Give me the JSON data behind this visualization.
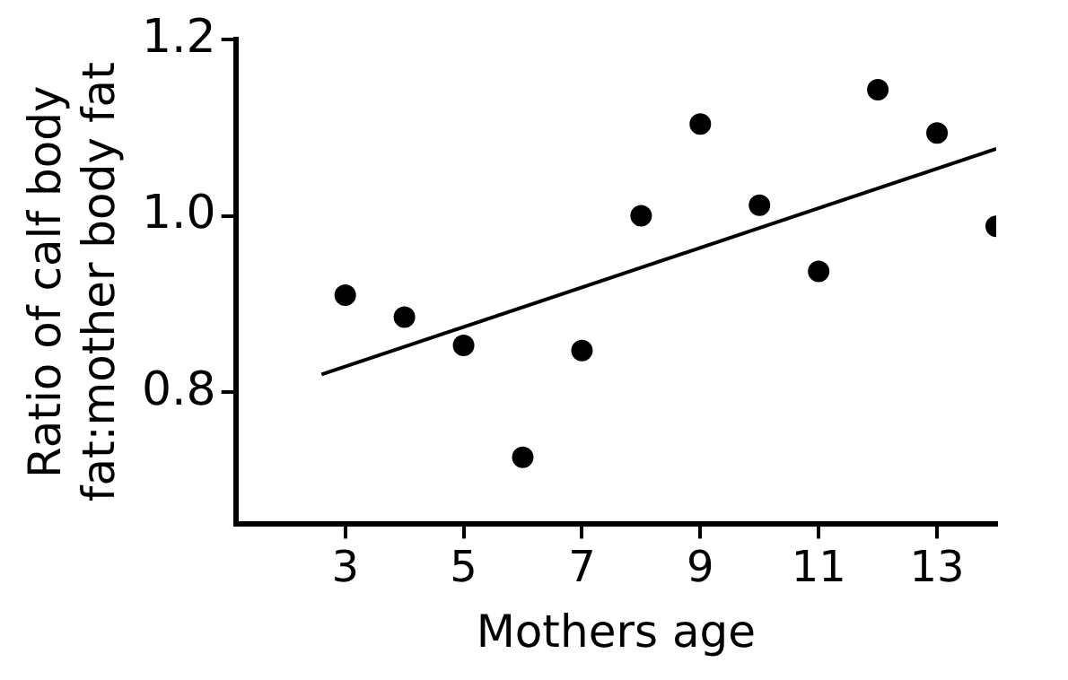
{
  "chart_data": {
    "type": "scatter",
    "xlabel": "Mothers age",
    "ylabel": "Ratio of calf body fat:mother body fat",
    "xlim": [
      1.15,
      14
    ],
    "xticks": [
      3,
      5,
      7,
      9,
      11,
      13
    ],
    "ylim": [
      0.65,
      1.2
    ],
    "yticks": [
      {
        "value": 0.8,
        "label": "0.8"
      },
      {
        "value": 1.0,
        "label": "1.0"
      },
      {
        "value": 1.2,
        "label": "1.2"
      }
    ],
    "grid": false,
    "legend": false,
    "series": [
      {
        "color": "#000000",
        "marker": "circle",
        "x": [
          3,
          4,
          5,
          6,
          7,
          8,
          9,
          10,
          11,
          12,
          13,
          14
        ],
        "values": [
          0.91,
          0.885,
          0.853,
          0.726,
          0.847,
          1.0,
          1.104,
          1.012,
          0.937,
          1.143,
          1.094,
          0.988
        ]
      },
      {
        "type": "line",
        "color": "#000000",
        "marker": "none",
        "line_style": "solid",
        "x": [
          2.6,
          14
        ],
        "values": [
          0.82,
          1.076
        ]
      }
    ]
  }
}
